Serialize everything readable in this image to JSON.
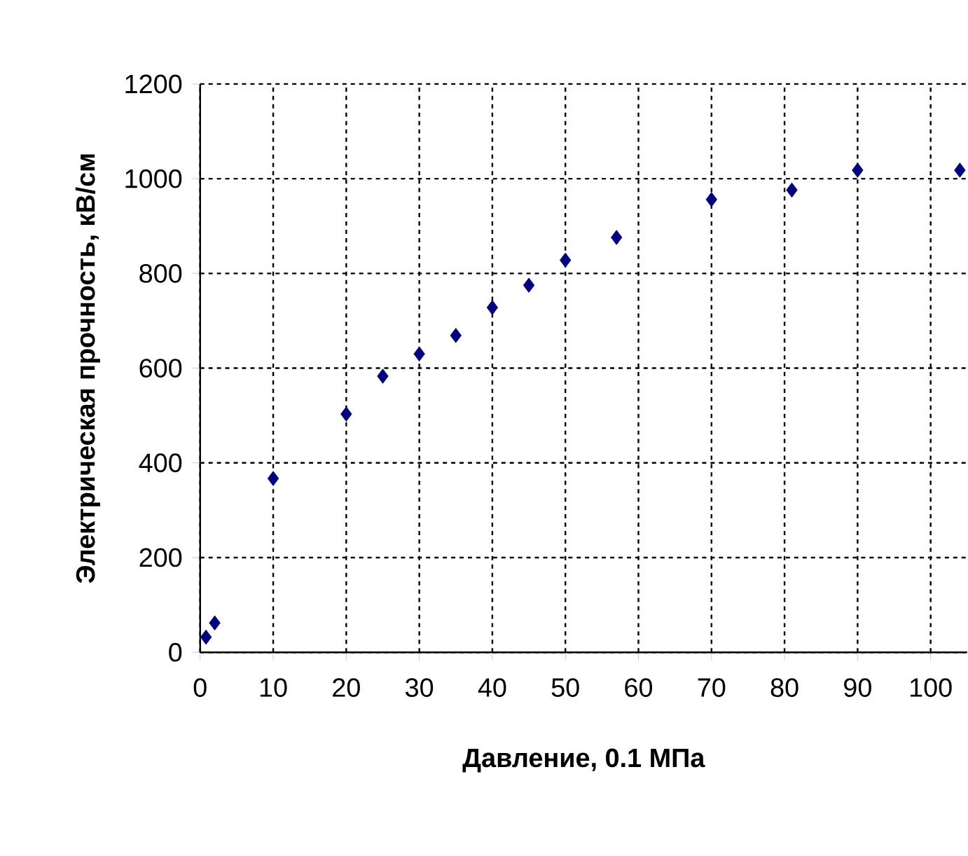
{
  "chart_data": {
    "type": "scatter",
    "xlabel": "Давление, 0.1 МПа",
    "ylabel": "Электрическая прочность, кВ/см",
    "x": [
      0.8,
      2,
      10,
      20,
      25,
      30,
      35,
      40,
      45,
      50,
      57,
      70,
      81,
      90,
      104
    ],
    "values": [
      32,
      62,
      367,
      503,
      583,
      630,
      669,
      728,
      775,
      828,
      876,
      956,
      976,
      1018,
      1018
    ],
    "color": "#000080",
    "marker": "diamond",
    "grid": true,
    "xlim": [
      0,
      105
    ],
    "xticks": [
      0,
      10,
      20,
      30,
      40,
      50,
      60,
      70,
      80,
      90,
      100
    ],
    "ylim": [
      0,
      1200
    ],
    "yticks": [
      0,
      200,
      400,
      600,
      800,
      1000,
      1200
    ]
  }
}
